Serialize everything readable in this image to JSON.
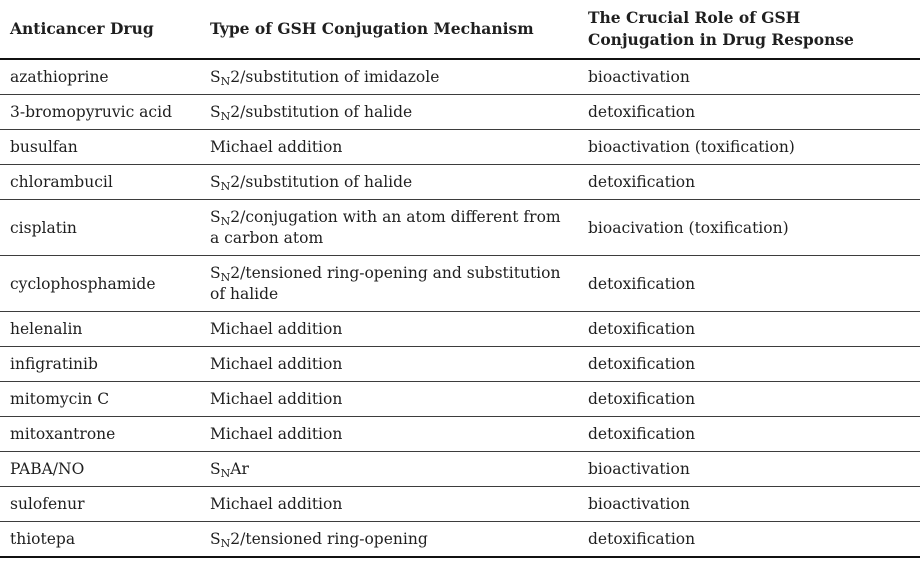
{
  "table": {
    "title_semantic": "anticancer-drug-gsh-conjugation-table",
    "colors": {
      "text": "#1f1f1f",
      "heavy_rule": "#111111",
      "light_rule": "#3d3d3d",
      "background": "#ffffff"
    },
    "headers": {
      "drug": "Anticancer Drug",
      "mechanism": "Type of GSH Conjugation Mechanism",
      "role": "The Crucial Role of GSH Conjugation in Drug Response"
    },
    "rows": [
      {
        "drug": "azathioprine",
        "mech_pre": "S",
        "mech_sub": "N",
        "mech_rest": "2/substitution of imidazole",
        "role": "bioactivation"
      },
      {
        "drug": "3-bromopyruvic acid",
        "mech_pre": "S",
        "mech_sub": "N",
        "mech_rest": "2/substitution of halide",
        "role": "detoxification"
      },
      {
        "drug": "busulfan",
        "mech_pre": "Michael addition",
        "mech_sub": "",
        "mech_rest": "",
        "role": "bioactivation (toxification)"
      },
      {
        "drug": "chlorambucil",
        "mech_pre": "S",
        "mech_sub": "N",
        "mech_rest": "2/substitution of halide",
        "role": "detoxification"
      },
      {
        "drug": "cisplatin",
        "mech_pre": "S",
        "mech_sub": "N",
        "mech_rest": "2/conjugation with an atom different from a carbon atom",
        "role": "bioacivation (toxification)"
      },
      {
        "drug": "cyclophosphamide",
        "mech_pre": "S",
        "mech_sub": "N",
        "mech_rest": "2/tensioned ring-opening and substitution of halide",
        "role": "detoxification"
      },
      {
        "drug": "helenalin",
        "mech_pre": "Michael addition",
        "mech_sub": "",
        "mech_rest": "",
        "role": "detoxification"
      },
      {
        "drug": "infigratinib",
        "mech_pre": "Michael addition",
        "mech_sub": "",
        "mech_rest": "",
        "role": "detoxification"
      },
      {
        "drug": "mitomycin C",
        "mech_pre": "Michael addition",
        "mech_sub": "",
        "mech_rest": "",
        "role": "detoxification"
      },
      {
        "drug": "mitoxantrone",
        "mech_pre": "Michael addition",
        "mech_sub": "",
        "mech_rest": "",
        "role": "detoxification"
      },
      {
        "drug": "PABA/NO",
        "mech_pre": "S",
        "mech_sub": "N",
        "mech_rest": "Ar",
        "role": "bioactivation"
      },
      {
        "drug": "sulofenur",
        "mech_pre": "Michael addition",
        "mech_sub": "",
        "mech_rest": "",
        "role": "bioactivation"
      },
      {
        "drug": "thiotepa",
        "mech_pre": "S",
        "mech_sub": "N",
        "mech_rest": "2/tensioned ring-opening",
        "role": "detoxification"
      }
    ]
  }
}
